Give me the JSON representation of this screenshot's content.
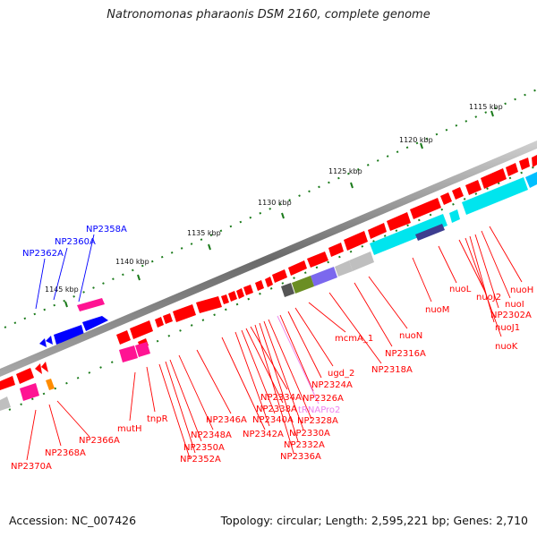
{
  "title": "Natronomonas pharaonis DSM 2160, complete genome",
  "footer": {
    "accession": "Accession: NC_007426",
    "summary": "Topology: circular; Length: 2,595,221 bp; Genes: 2,710"
  },
  "ruler_labels": [
    "1115 kbp",
    "1120 kbp",
    "1125 kbp",
    "1130 kbp",
    "1135 kbp",
    "1140 kbp",
    "1145 kbp"
  ],
  "colors": {
    "forward_gene": "#ff0000",
    "reverse_gene": "#0000ff",
    "trna": "#ee82ee",
    "backbone": "#808080",
    "ruler_ticks": "#1a7a1a",
    "cog_cyan": "#00e5ee",
    "cog_pink": "#ff1493",
    "cog_olive": "#6b8e23",
    "cog_purple": "#7b68ee",
    "cog_gray": "#bfbfbf",
    "cog_dark": "#555555",
    "cog_orange": "#ff8c00",
    "cog_navy": "#3d3d8f"
  },
  "labels": {
    "reverse_strand": [
      "NP2358A",
      "NP2360A",
      "NP2362A"
    ],
    "forward_strand": [
      "nuoH",
      "nuoI",
      "NP2302A",
      "nuoJ1",
      "nuoK",
      "nuoJ2",
      "nuoL",
      "nuoM",
      "nuoN",
      "NP2316A",
      "NP2318A",
      "mcmA_1",
      "ugd_2",
      "NP2324A",
      "NP2326A",
      "tRNAPro2",
      "NP2328A",
      "NP2330A",
      "NP2332A",
      "NP2336A",
      "NP2334A",
      "NP2338A",
      "NP2340A",
      "NP2342A",
      "NP2346A",
      "NP2348A",
      "NP2350A",
      "NP2352A",
      "tnpR",
      "mutH",
      "NP2366A",
      "NP2368A",
      "NP2370A"
    ]
  }
}
